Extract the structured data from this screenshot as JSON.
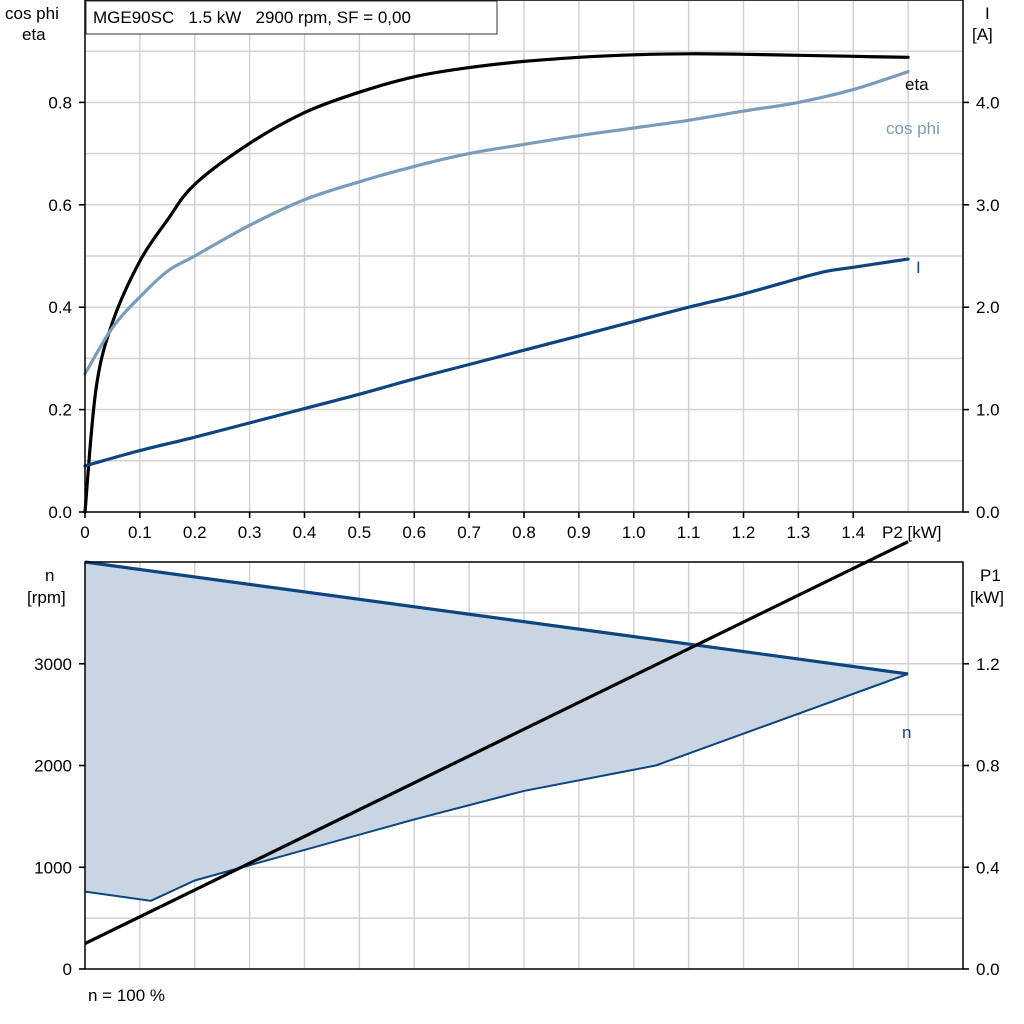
{
  "colors": {
    "eta": "#000000",
    "cos_phi": "#7a9cba",
    "current": "#0d4580",
    "speed": "#0d4580",
    "speed_fill": "#c9d5e3",
    "p1": "#000000",
    "grid": "#d0d0d0"
  },
  "chart_data": [
    {
      "type": "line",
      "title": "MGE90SC   1.5 kW   2900 rpm, SF = 0,00",
      "xlabel": "P2 [kW]",
      "ylabel_left": [
        "cos phi",
        "eta"
      ],
      "ylabel_right": [
        "I",
        "[A]"
      ],
      "xlim": [
        0,
        1.6
      ],
      "ylim_left": [
        0,
        1.0
      ],
      "ylim_right": [
        0,
        5.0
      ],
      "grid": true,
      "x_ticks": [
        "0",
        "0.1",
        "0.2",
        "0.3",
        "0.4",
        "0.5",
        "0.6",
        "0.7",
        "0.8",
        "0.9",
        "1.0",
        "1.1",
        "1.2",
        "1.3",
        "1.4",
        "P2 [kW]"
      ],
      "y_ticks_left": [
        "0.0",
        "0.2",
        "0.4",
        "0.6",
        "0.8"
      ],
      "y_ticks_right": [
        "0.0",
        "1.0",
        "2.0",
        "3.0",
        "4.0"
      ],
      "series": [
        {
          "name": "eta",
          "axis": "left",
          "x": [
            0,
            0.02,
            0.05,
            0.1,
            0.15,
            0.2,
            0.3,
            0.4,
            0.5,
            0.6,
            0.7,
            0.8,
            0.9,
            1.0,
            1.1,
            1.2,
            1.3,
            1.4,
            1.5
          ],
          "y": [
            0.0,
            0.24,
            0.37,
            0.49,
            0.57,
            0.64,
            0.72,
            0.78,
            0.82,
            0.85,
            0.868,
            0.88,
            0.888,
            0.893,
            0.895,
            0.894,
            0.892,
            0.89,
            0.888
          ]
        },
        {
          "name": "cos phi",
          "axis": "left",
          "x": [
            0,
            0.05,
            0.1,
            0.15,
            0.2,
            0.3,
            0.4,
            0.5,
            0.6,
            0.7,
            0.8,
            0.9,
            1.0,
            1.1,
            1.2,
            1.3,
            1.4,
            1.5
          ],
          "y": [
            0.27,
            0.36,
            0.42,
            0.47,
            0.5,
            0.56,
            0.61,
            0.645,
            0.675,
            0.7,
            0.718,
            0.735,
            0.75,
            0.765,
            0.783,
            0.8,
            0.825,
            0.86
          ]
        },
        {
          "name": "I",
          "axis": "right",
          "x": [
            0,
            0.1,
            0.2,
            0.3,
            0.4,
            0.5,
            0.6,
            0.7,
            0.8,
            0.9,
            1.0,
            1.1,
            1.2,
            1.3,
            1.35,
            1.4,
            1.5
          ],
          "y": [
            0.45,
            0.6,
            0.73,
            0.87,
            1.01,
            1.15,
            1.3,
            1.44,
            1.58,
            1.72,
            1.86,
            2.0,
            2.13,
            2.28,
            2.35,
            2.39,
            2.47
          ]
        }
      ]
    },
    {
      "type": "area",
      "xlabel": "",
      "ylabel_left": [
        "n",
        "[rpm]"
      ],
      "ylabel_right": [
        "P1",
        "[kW]"
      ],
      "xlim": [
        0,
        1.6
      ],
      "ylim_left": [
        0,
        4000
      ],
      "ylim_right": [
        0,
        1.6
      ],
      "grid": true,
      "y_ticks_left": [
        "0",
        "1000",
        "2000",
        "3000"
      ],
      "y_ticks_right": [
        "0.0",
        "0.4",
        "0.8",
        "1.2"
      ],
      "series": [
        {
          "name": "n",
          "axis": "left",
          "kind": "band",
          "upper": {
            "x": [
              0,
              1.5
            ],
            "y": [
              4000,
              2900
            ]
          },
          "lower": {
            "x": [
              0,
              0.12,
              0.2,
              0.4,
              0.6,
              0.8,
              1.04,
              1.5
            ],
            "y": [
              760,
              670,
              870,
              1170,
              1470,
              1750,
              2000,
              2900
            ]
          }
        },
        {
          "name": "P1",
          "axis": "right",
          "x": [
            0,
            1.5
          ],
          "y": [
            0.1,
            1.68
          ]
        }
      ],
      "footnote": "n = 100 %"
    }
  ]
}
